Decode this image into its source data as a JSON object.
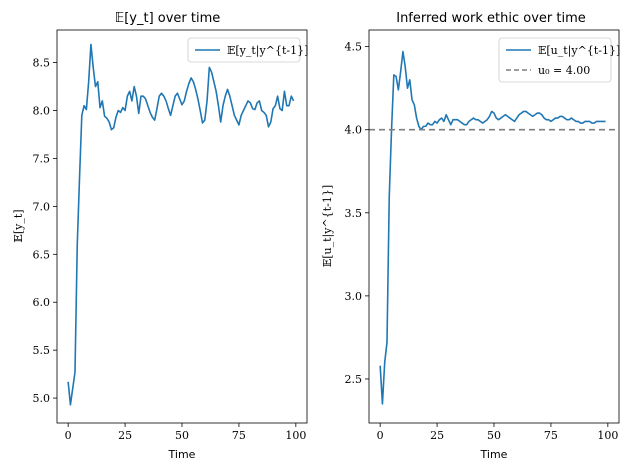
{
  "chart_data": [
    {
      "type": "line",
      "title": "𝔼[y_t] over time",
      "xlabel": "Time",
      "ylabel": "𝔼[y_t]",
      "xlim": [
        -4.9,
        104.9
      ],
      "ylim": [
        4.74,
        8.84
      ],
      "xticks": [
        0,
        25,
        50,
        75,
        100
      ],
      "xtick_labels": [
        "0",
        "25",
        "50",
        "75",
        "100"
      ],
      "yticks": [
        5.0,
        5.5,
        6.0,
        6.5,
        7.0,
        7.5,
        8.0,
        8.5
      ],
      "ytick_labels": [
        "5.0",
        "5.5",
        "6.0",
        "6.5",
        "7.0",
        "7.5",
        "8.0",
        "8.5"
      ],
      "grid": false,
      "legend_position": "top-right",
      "series": [
        {
          "name": "𝔼[y_t|y^{t-1}]",
          "color": "#1f77b4",
          "style": "solid",
          "x": [
            0,
            1,
            2,
            3,
            4,
            5,
            6,
            7,
            8,
            9,
            10,
            11,
            12,
            13,
            14,
            15,
            16,
            17,
            18,
            19,
            20,
            21,
            22,
            23,
            24,
            25,
            26,
            27,
            28,
            29,
            30,
            31,
            32,
            33,
            34,
            35,
            36,
            37,
            38,
            39,
            40,
            41,
            42,
            43,
            44,
            45,
            46,
            47,
            48,
            49,
            50,
            51,
            52,
            53,
            54,
            55,
            56,
            57,
            58,
            59,
            60,
            61,
            62,
            63,
            64,
            65,
            66,
            67,
            68,
            69,
            70,
            71,
            72,
            73,
            74,
            75,
            76,
            77,
            78,
            79,
            80,
            81,
            82,
            83,
            84,
            85,
            86,
            87,
            88,
            89,
            90,
            91,
            92,
            93,
            94,
            95,
            96,
            97,
            98,
            99
          ],
          "y": [
            5.17,
            4.93,
            5.1,
            5.27,
            6.6,
            7.3,
            7.95,
            8.05,
            8.01,
            8.3,
            8.69,
            8.45,
            8.25,
            8.3,
            8.03,
            8.1,
            7.94,
            7.92,
            7.88,
            7.8,
            7.82,
            7.93,
            8.0,
            7.98,
            8.03,
            8.0,
            8.15,
            8.2,
            8.1,
            8.25,
            8.15,
            7.97,
            8.15,
            8.15,
            8.12,
            8.05,
            7.98,
            7.93,
            7.9,
            8.02,
            8.15,
            8.18,
            8.15,
            8.1,
            8.02,
            7.95,
            8.05,
            8.15,
            8.18,
            8.12,
            8.06,
            8.1,
            8.2,
            8.28,
            8.34,
            8.3,
            8.22,
            8.12,
            8.0,
            7.87,
            7.9,
            8.1,
            8.45,
            8.4,
            8.3,
            8.2,
            8.05,
            7.88,
            8.05,
            8.15,
            8.22,
            8.15,
            8.05,
            7.95,
            7.9,
            7.85,
            7.95,
            8.0,
            8.05,
            8.1,
            8.08,
            8.02,
            8.01,
            8.08,
            8.1,
            8.0,
            7.98,
            7.95,
            7.83,
            7.88,
            8.02,
            8.05,
            8.15,
            8.02,
            8.0,
            8.2,
            8.05,
            8.05,
            8.15,
            8.1
          ]
        }
      ]
    },
    {
      "type": "line",
      "title": "Inferred work ethic over time",
      "xlabel": "Time",
      "ylabel": "𝔼[u_t|y^{t-1}]",
      "xlim": [
        -4.9,
        104.9
      ],
      "ylim": [
        2.235,
        4.6
      ],
      "xticks": [
        0,
        25,
        50,
        75,
        100
      ],
      "xtick_labels": [
        "0",
        "25",
        "50",
        "75",
        "100"
      ],
      "yticks": [
        2.5,
        3.0,
        3.5,
        4.0,
        4.5
      ],
      "ytick_labels": [
        "2.5",
        "3.0",
        "3.5",
        "4.0",
        "4.5"
      ],
      "grid": false,
      "legend_position": "top-right",
      "series": [
        {
          "name": "𝔼[u_t|y^{t-1}]",
          "color": "#1f77b4",
          "style": "solid",
          "x": [
            0,
            1,
            2,
            3,
            4,
            5,
            6,
            7,
            8,
            9,
            10,
            11,
            12,
            13,
            14,
            15,
            16,
            17,
            18,
            19,
            20,
            21,
            22,
            23,
            24,
            25,
            26,
            27,
            28,
            29,
            30,
            31,
            32,
            33,
            34,
            35,
            36,
            37,
            38,
            39,
            40,
            41,
            42,
            43,
            44,
            45,
            46,
            47,
            48,
            49,
            50,
            51,
            52,
            53,
            54,
            55,
            56,
            57,
            58,
            59,
            60,
            61,
            62,
            63,
            64,
            65,
            66,
            67,
            68,
            69,
            70,
            71,
            72,
            73,
            74,
            75,
            76,
            77,
            78,
            79,
            80,
            81,
            82,
            83,
            84,
            85,
            86,
            87,
            88,
            89,
            90,
            91,
            92,
            93,
            94,
            95,
            96,
            97,
            98,
            99
          ],
          "y": [
            2.58,
            2.35,
            2.6,
            2.72,
            3.6,
            4.0,
            4.33,
            4.32,
            4.24,
            4.35,
            4.47,
            4.38,
            4.25,
            4.3,
            4.18,
            4.15,
            4.07,
            4.02,
            4.0,
            4.02,
            4.02,
            4.04,
            4.03,
            4.03,
            4.05,
            4.04,
            4.06,
            4.07,
            4.05,
            4.09,
            4.06,
            4.03,
            4.06,
            4.06,
            4.06,
            4.05,
            4.04,
            4.03,
            4.03,
            4.05,
            4.06,
            4.07,
            4.06,
            4.06,
            4.05,
            4.04,
            4.05,
            4.06,
            4.08,
            4.11,
            4.1,
            4.07,
            4.06,
            4.07,
            4.08,
            4.09,
            4.08,
            4.07,
            4.06,
            4.05,
            4.07,
            4.09,
            4.1,
            4.11,
            4.11,
            4.1,
            4.09,
            4.08,
            4.09,
            4.1,
            4.1,
            4.09,
            4.07,
            4.06,
            4.06,
            4.05,
            4.06,
            4.07,
            4.07,
            4.08,
            4.08,
            4.07,
            4.06,
            4.06,
            4.07,
            4.06,
            4.05,
            4.05,
            4.04,
            4.04,
            4.05,
            4.05,
            4.05,
            4.04,
            4.04,
            4.05,
            4.05,
            4.05,
            4.05,
            4.05
          ]
        },
        {
          "name": "u₀ = 4.00",
          "color": "#7f7f7f",
          "style": "dashed",
          "x": [
            -4.9,
            104.9
          ],
          "y": [
            4.0,
            4.0
          ]
        }
      ]
    }
  ]
}
